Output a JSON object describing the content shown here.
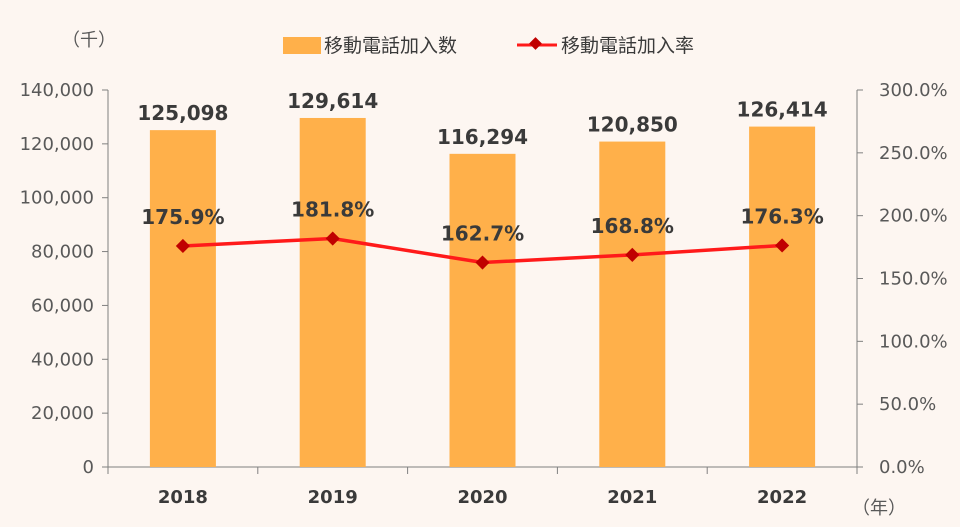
{
  "chart_data": {
    "type": "bar",
    "categories": [
      "2018",
      "2019",
      "2020",
      "2021",
      "2022"
    ],
    "series": [
      {
        "name": "移動電話加入数",
        "type": "bar",
        "axis": "left",
        "values": [
          125098,
          129614,
          116294,
          120850,
          126414
        ],
        "labels": [
          "125,098",
          "129,614",
          "116,294",
          "120,850",
          "126,414"
        ]
      },
      {
        "name": "移動電話加入率",
        "type": "line",
        "axis": "right",
        "values": [
          175.9,
          181.8,
          162.7,
          168.8,
          176.3
        ],
        "labels": [
          "175.9%",
          "181.8%",
          "162.7%",
          "168.8%",
          "176.3%"
        ]
      }
    ],
    "ylim": [
      0,
      140000
    ],
    "y2lim": [
      0,
      300
    ],
    "yticks": [
      "0",
      "20,000",
      "40,000",
      "60,000",
      "80,000",
      "100,000",
      "120,000",
      "140,000"
    ],
    "y2ticks": [
      "0.0%",
      "50.0%",
      "100.0%",
      "150.0%",
      "200.0%",
      "250.0%",
      "300.0%"
    ],
    "y_unit": "（千）",
    "x_unit": "（年）",
    "legend_position": "top-center",
    "colors": {
      "bar": "#ffb04a",
      "line": "#ff1a1a",
      "marker": "#c00000",
      "axis": "#808080"
    }
  }
}
